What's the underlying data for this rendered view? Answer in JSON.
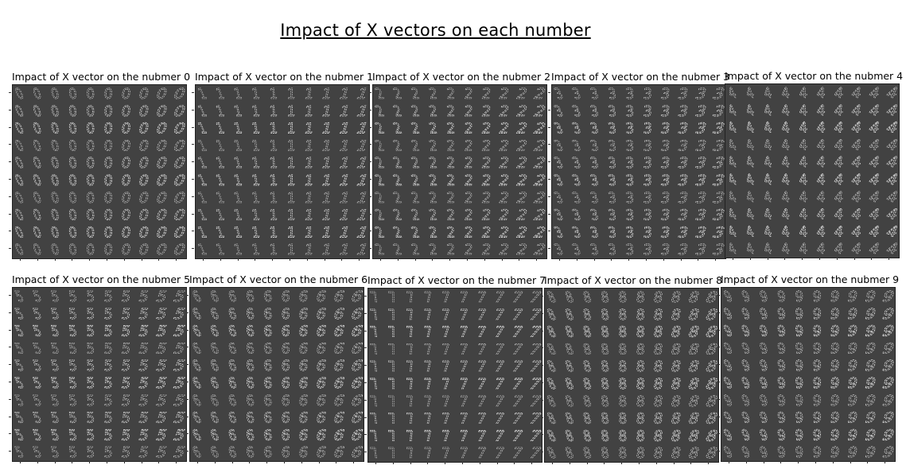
{
  "figure": {
    "title": "Impact of X vectors on each number"
  },
  "chart_data": [
    {
      "type": "image-grid",
      "title": "Impact of X vector on the nubmer 0",
      "digit": "0",
      "grid": [
        10,
        10
      ]
    },
    {
      "type": "image-grid",
      "title": "Impact of X vector on the nubmer 1",
      "digit": "1",
      "grid": [
        10,
        10
      ]
    },
    {
      "type": "image-grid",
      "title": "Impact of X vector on the nubmer 2",
      "digit": "2",
      "grid": [
        10,
        10
      ]
    },
    {
      "type": "image-grid",
      "title": "Impact of X vector on the nubmer 3",
      "digit": "3",
      "grid": [
        10,
        10
      ]
    },
    {
      "type": "image-grid",
      "title": "Impact of X vector on the nubmer 4",
      "digit": "4",
      "grid": [
        10,
        10
      ]
    },
    {
      "type": "image-grid",
      "title": "Impact of X vector on the nubmer 5",
      "digit": "5",
      "grid": [
        10,
        10
      ]
    },
    {
      "type": "image-grid",
      "title": "Impact of X vector on the nubmer 6",
      "digit": "6",
      "grid": [
        10,
        10
      ]
    },
    {
      "type": "image-grid",
      "title": "Impact of X vector on the nubmer 7",
      "digit": "7",
      "grid": [
        10,
        10
      ]
    },
    {
      "type": "image-grid",
      "title": "Impact of X vector on the nubmer 8",
      "digit": "8",
      "grid": [
        10,
        10
      ]
    },
    {
      "type": "image-grid",
      "title": "Impact of X vector on the nubmer 9",
      "digit": "9",
      "grid": [
        10,
        10
      ]
    }
  ],
  "colors": {
    "panel_background": "#424242",
    "digit_stroke": "#d9d9d9"
  }
}
